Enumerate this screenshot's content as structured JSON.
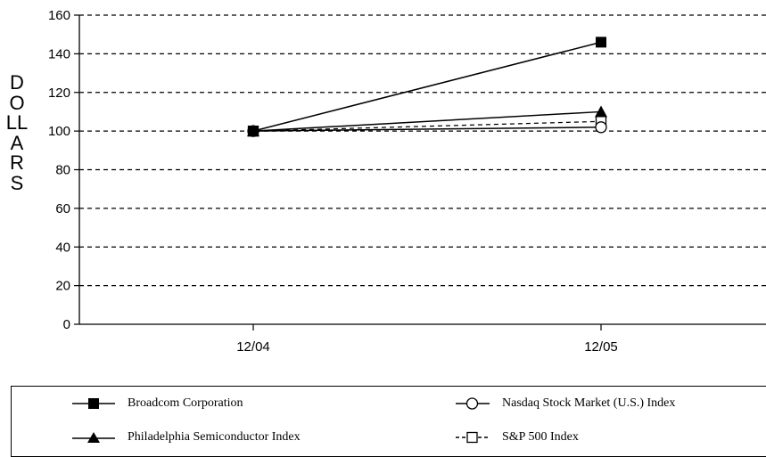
{
  "chart_data": {
    "type": "line",
    "ylabel": "DOLLARS",
    "xlabel": "",
    "categories": [
      "12/04",
      "12/05"
    ],
    "yticks": [
      0,
      20,
      40,
      60,
      80,
      100,
      120,
      140,
      160
    ],
    "ylim": [
      0,
      160
    ],
    "grid": "horizontal dashed",
    "legend_position": "bottom",
    "series": [
      {
        "name": "Broadcom Corporation",
        "values": [
          100,
          146
        ],
        "marker": "filled-square",
        "line": "solid",
        "color": "#000000"
      },
      {
        "name": "Philadelphia Semiconductor Index",
        "values": [
          100,
          110
        ],
        "marker": "filled-triangle",
        "line": "solid",
        "color": "#000000"
      },
      {
        "name": "Nasdaq Stock Market (U.S.) Index",
        "values": [
          100,
          102
        ],
        "marker": "open-circle",
        "line": "solid",
        "color": "#000000"
      },
      {
        "name": "S&P 500 Index",
        "values": [
          100,
          105
        ],
        "marker": "open-square",
        "line": "dashed",
        "color": "#000000"
      }
    ]
  }
}
